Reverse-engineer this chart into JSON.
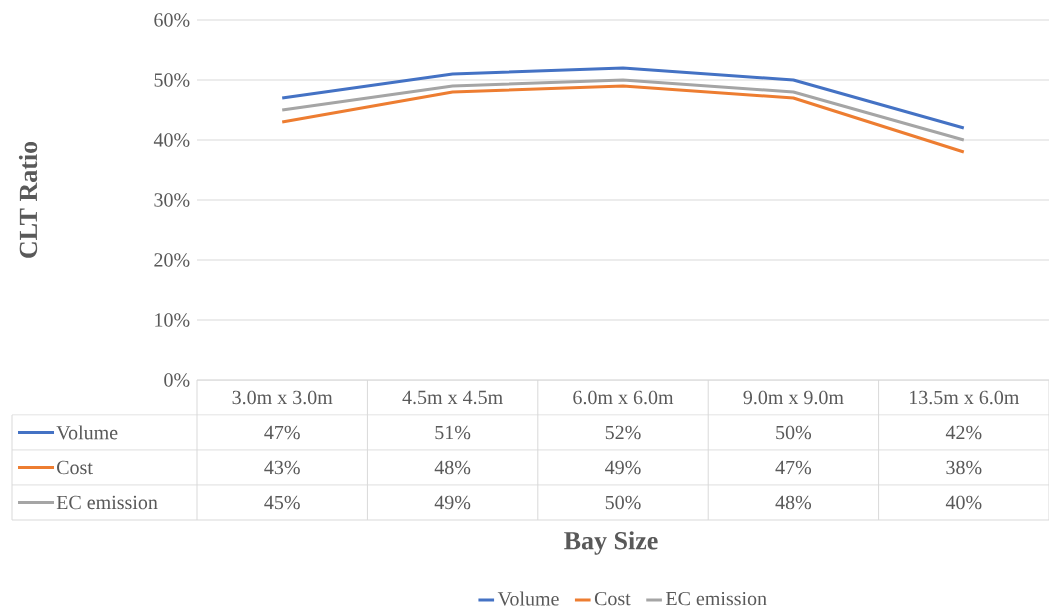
{
  "chart_data": {
    "type": "line",
    "xlabel": "Bay Size",
    "ylabel": "CLT Ratio",
    "categories": [
      "3.0m x 3.0m",
      "4.5m x 4.5m",
      "6.0m x 6.0m",
      "9.0m x 9.0m",
      "13.5m x 6.0m"
    ],
    "series": [
      {
        "name": "Volume",
        "color": "#4472c4",
        "values": [
          47,
          51,
          52,
          50,
          42
        ],
        "value_labels": [
          "47%",
          "51%",
          "52%",
          "50%",
          "42%"
        ]
      },
      {
        "name": "Cost",
        "color": "#ed7d31",
        "values": [
          43,
          48,
          49,
          47,
          38
        ],
        "value_labels": [
          "43%",
          "48%",
          "49%",
          "47%",
          "38%"
        ]
      },
      {
        "name": "EC emission",
        "color": "#a5a5a5",
        "values": [
          45,
          49,
          50,
          48,
          40
        ],
        "value_labels": [
          "45%",
          "49%",
          "50%",
          "48%",
          "40%"
        ]
      }
    ],
    "ylim": [
      0,
      60
    ],
    "yticks": [
      {
        "value": 0,
        "label": "0%"
      },
      {
        "value": 10,
        "label": "10%"
      },
      {
        "value": 20,
        "label": "20%"
      },
      {
        "value": 30,
        "label": "30%"
      },
      {
        "value": 40,
        "label": "40%"
      },
      {
        "value": 50,
        "label": "50%"
      },
      {
        "value": 60,
        "label": "60%"
      }
    ],
    "grid": "y",
    "legend": "bottom",
    "marker": "none",
    "line_style": "solid"
  }
}
